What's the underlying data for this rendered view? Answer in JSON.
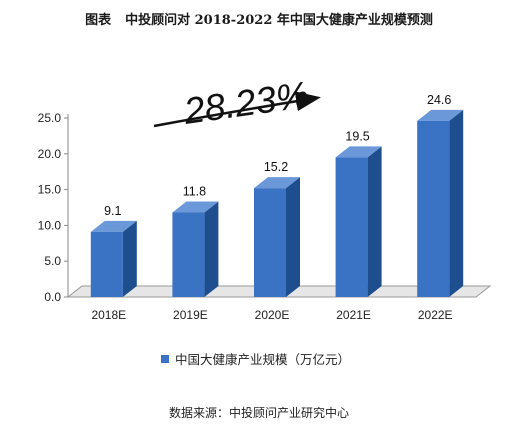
{
  "header": {
    "label": "图表",
    "title": "中投顾问对 2018-2022 年中国大健康产业规模预测"
  },
  "chart_data": {
    "type": "bar",
    "categories": [
      "2018E",
      "2019E",
      "2020E",
      "2021E",
      "2022E"
    ],
    "series": [
      {
        "name": "中国大健康产业规模（万亿元）",
        "values": [
          9.1,
          11.8,
          15.2,
          19.5,
          24.6
        ]
      }
    ],
    "data_labels": [
      "9.1",
      "11.8",
      "15.2",
      "19.5",
      "24.6"
    ],
    "y_ticks": [
      "0.0",
      "5.0",
      "10.0",
      "15.0",
      "20.0",
      "25.0"
    ],
    "ylim": [
      0,
      25
    ],
    "annotation": "28.23%",
    "legend_position": "bottom-left",
    "bar_color": "#3a72c4",
    "bar_side_color": "#1f4e8f",
    "bar_top_color": "#6a98d8"
  },
  "footer": {
    "source": "数据来源：中投顾问产业研究中心"
  }
}
